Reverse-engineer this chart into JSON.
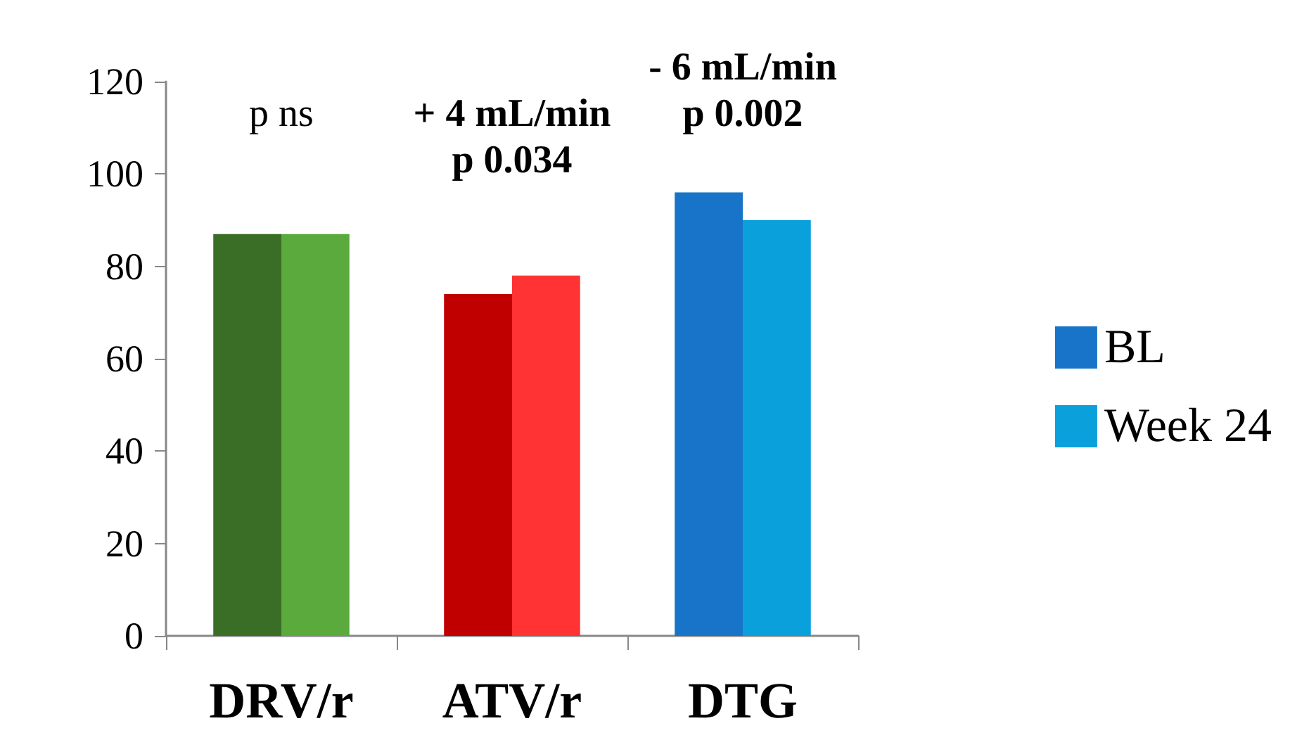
{
  "chart_data": {
    "type": "bar",
    "categories": [
      "DRV/r",
      "ATV/r",
      "DTG"
    ],
    "series": [
      {
        "name": "BL",
        "color": "#1874c8",
        "colors": [
          "#3a6e27",
          "#c00000",
          "#1874c8"
        ],
        "values": [
          87,
          74,
          96
        ]
      },
      {
        "name": "Week 24",
        "color": "#0aa0dc",
        "colors": [
          "#5aaa3e",
          "#ff3333",
          "#0aa0dc"
        ],
        "values": [
          87,
          78,
          90
        ]
      }
    ],
    "ylim": [
      0,
      120
    ],
    "yticks": [
      0,
      20,
      40,
      60,
      80,
      100,
      120
    ],
    "grid": false,
    "legend": "right",
    "annotations": [
      "p ns",
      "+ 4 mL/min",
      "p 0.034",
      "- 6 mL/min",
      "p 0.002"
    ]
  }
}
